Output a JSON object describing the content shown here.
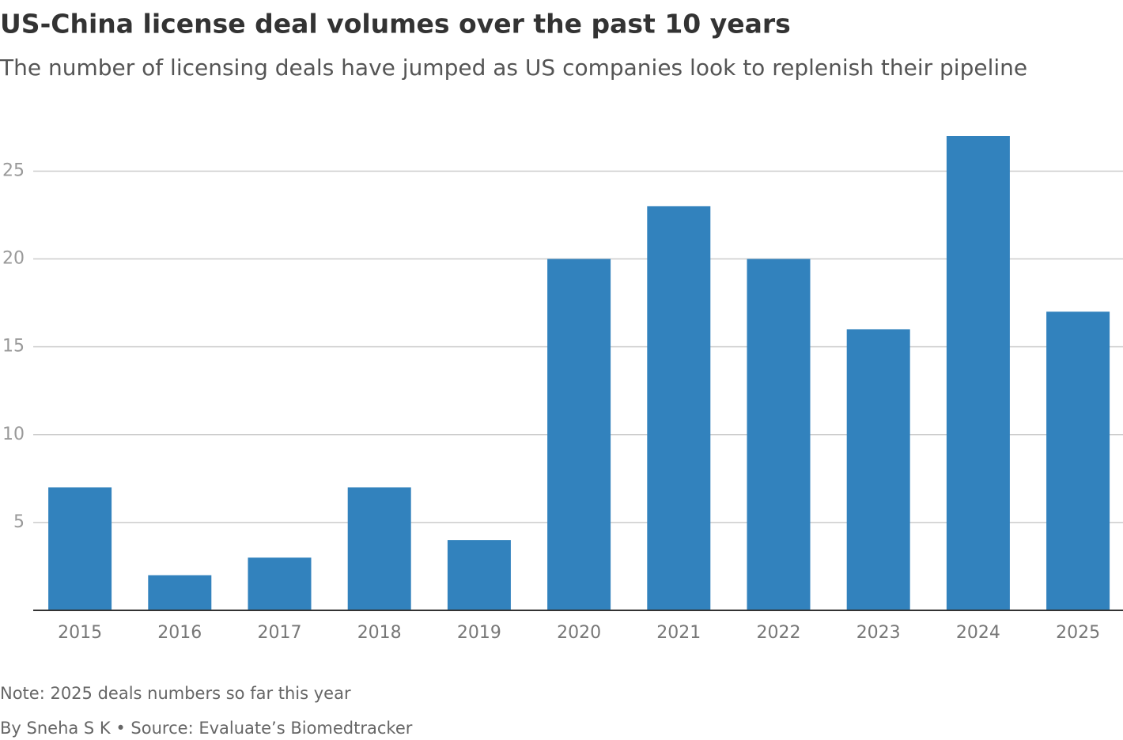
{
  "chart_data": {
    "type": "bar",
    "title": "US-China license deal volumes over the past 10 years",
    "subtitle": "The number of licensing deals have jumped as US companies look to replenish their pipeline",
    "categories": [
      "2015",
      "2016",
      "2017",
      "2018",
      "2019",
      "2020",
      "2021",
      "2022",
      "2023",
      "2024",
      "2025"
    ],
    "values": [
      7,
      2,
      3,
      7,
      4,
      20,
      23,
      20,
      16,
      27,
      17
    ],
    "color": "#3282bd",
    "ylim": [
      0,
      27
    ],
    "yticks": [
      5,
      10,
      15,
      20,
      25
    ],
    "grid": true,
    "note": "Note: 2025 deals numbers so far this year",
    "source": "By Sneha S K • Source: Evaluate’s Biomedtracker"
  }
}
